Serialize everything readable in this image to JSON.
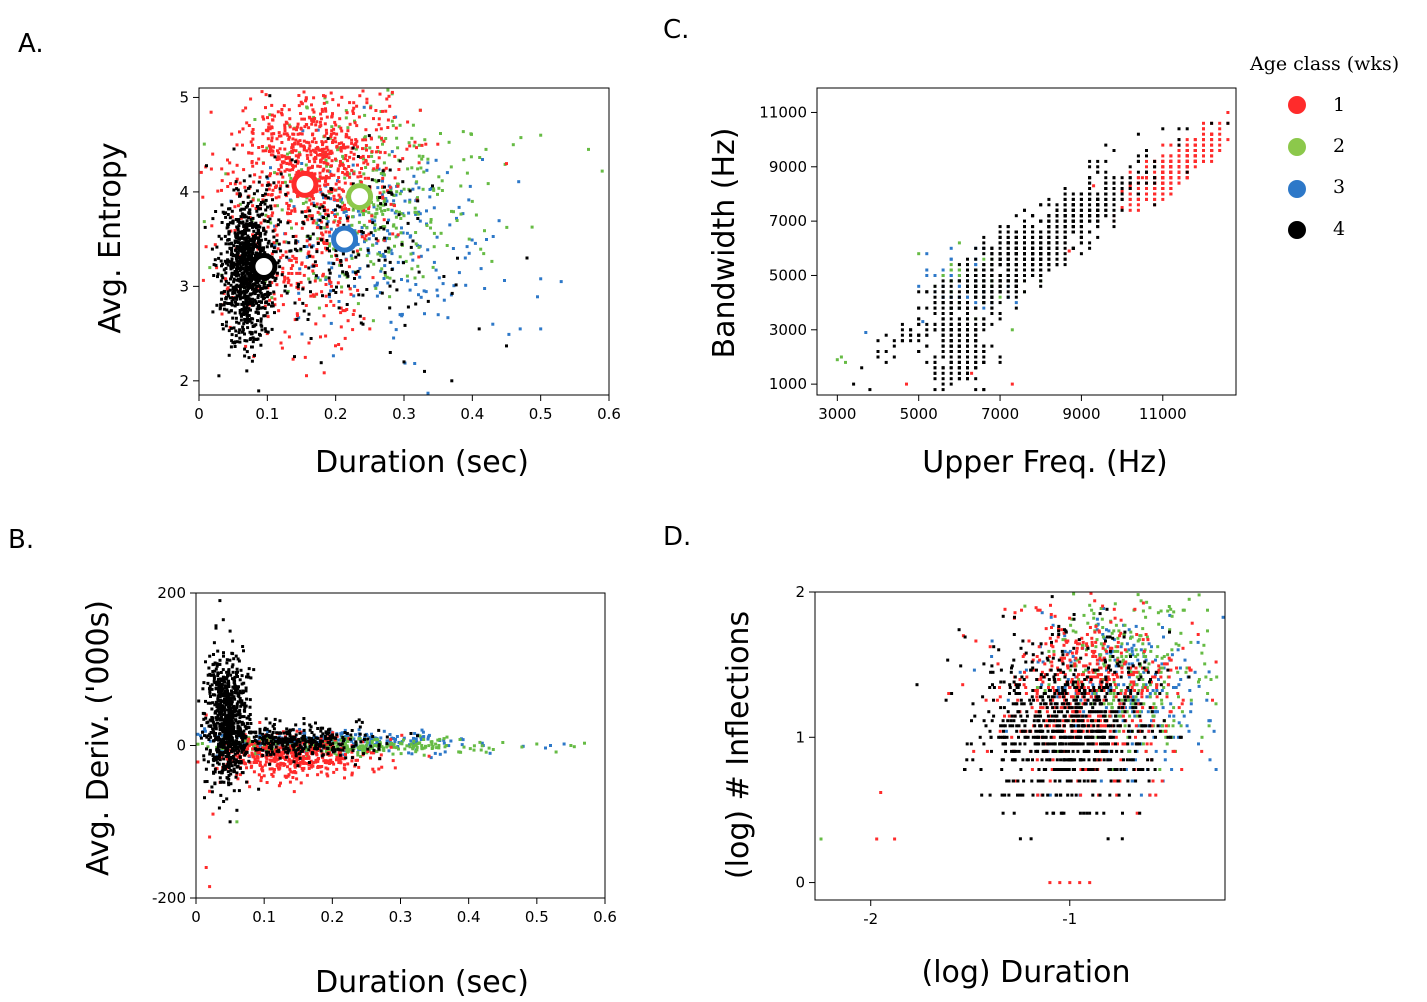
{
  "colors": {
    "1": "#ff2b2b",
    "2": "#66bb44",
    "3": "#2d78c8",
    "4": "#000000"
  },
  "legend": {
    "title": "Age class (wks)",
    "items": [
      {
        "label": "1",
        "color": "#ff2b2b"
      },
      {
        "label": "2",
        "color": "#8cc84b"
      },
      {
        "label": "3",
        "color": "#2d78c8"
      },
      {
        "label": "4",
        "color": "#000000"
      }
    ]
  },
  "chart_data": [
    {
      "id": "A",
      "panel_label": "A.",
      "type": "scatter",
      "xlabel": "Duration (sec)",
      "ylabel": "Avg. Entropy",
      "xlim": [
        0,
        0.6
      ],
      "ylim": [
        1.85,
        5.1
      ],
      "xticks": [
        0,
        0.1,
        0.2,
        0.3,
        0.4,
        0.5,
        0.6
      ],
      "xtick_labels": [
        "0",
        "0.1",
        "0.2",
        "0.3",
        "0.4",
        "0.5",
        "0.6"
      ],
      "yticks": [
        2,
        3,
        4,
        5
      ],
      "ytick_labels": [
        "2",
        "3",
        "4",
        "5"
      ],
      "means": [
        {
          "age_class": "1",
          "x": 0.155,
          "y": 4.08
        },
        {
          "age_class": "2",
          "x": 0.235,
          "y": 3.95
        },
        {
          "age_class": "3",
          "x": 0.213,
          "y": 3.5
        },
        {
          "age_class": "4",
          "x": 0.095,
          "y": 3.21
        }
      ],
      "series": [
        {
          "age_class": "4",
          "clusters": [
            {
              "cx": 0.07,
              "cy": 3.2,
              "sx": 0.018,
              "sy": 0.38,
              "n": 900
            },
            {
              "cx": 0.16,
              "cy": 3.5,
              "sx": 0.09,
              "sy": 0.45,
              "n": 280
            }
          ],
          "scatter": [
            [
              0.3,
              2.2
            ],
            [
              0.33,
              2.1
            ],
            [
              0.37,
              2.0
            ],
            [
              0.45,
              2.37
            ],
            [
              0.41,
              2.55
            ],
            [
              0.48,
              3.3
            ],
            [
              0.24,
              2.6
            ],
            [
              0.28,
              2.3
            ]
          ]
        },
        {
          "age_class": "1",
          "clusters": [
            {
              "cx": 0.17,
              "cy": 4.4,
              "sx": 0.06,
              "sy": 0.35,
              "n": 650
            },
            {
              "cx": 0.14,
              "cy": 3.3,
              "sx": 0.06,
              "sy": 0.5,
              "n": 260
            }
          ],
          "scatter": [
            [
              0.02,
              4.4
            ],
            [
              0.45,
              4.3
            ],
            [
              0.1,
              2.5
            ],
            [
              0.12,
              2.4
            ],
            [
              0.25,
              2.55
            ]
          ]
        },
        {
          "age_class": "2",
          "clusters": [
            {
              "cx": 0.25,
              "cy": 3.9,
              "sx": 0.08,
              "sy": 0.5,
              "n": 340
            }
          ],
          "scatter": [
            [
              0.5,
              4.6
            ],
            [
              0.57,
              4.45
            ],
            [
              0.59,
              4.22
            ],
            [
              0.42,
              4.45
            ],
            [
              0.46,
              4.5
            ],
            [
              0.4,
              3.9
            ]
          ]
        },
        {
          "age_class": "3",
          "clusters": [
            {
              "cx": 0.26,
              "cy": 3.5,
              "sx": 0.08,
              "sy": 0.45,
              "n": 240
            }
          ],
          "scatter": [
            [
              0.5,
              3.08
            ],
            [
              0.53,
              3.05
            ],
            [
              0.47,
              2.55
            ],
            [
              0.5,
              2.55
            ],
            [
              0.43,
              2.6
            ],
            [
              0.35,
              2.7
            ]
          ]
        }
      ]
    },
    {
      "id": "B",
      "panel_label": "B.",
      "type": "scatter",
      "xlabel": "Duration (sec)",
      "ylabel": "Avg. Deriv. ('000s)",
      "xlim": [
        0,
        0.6
      ],
      "ylim": [
        -200,
        200
      ],
      "xticks": [
        0,
        0.1,
        0.2,
        0.3,
        0.4,
        0.5,
        0.6
      ],
      "xtick_labels": [
        "0",
        "0.1",
        "0.2",
        "0.3",
        "0.4",
        "0.5",
        "0.6"
      ],
      "yticks": [
        -200,
        0,
        200
      ],
      "ytick_labels": [
        "-200",
        "0",
        "200"
      ],
      "series": [
        {
          "age_class": "4",
          "clusters": [
            {
              "cx": 0.045,
              "cy": 35,
              "sx": 0.015,
              "sy": 40,
              "n": 750
            },
            {
              "cx": 0.14,
              "cy": 5,
              "sx": 0.06,
              "sy": 12,
              "n": 380
            }
          ],
          "scatter": [
            [
              0.035,
              190
            ],
            [
              0.04,
              165
            ],
            [
              0.05,
              150
            ],
            [
              0.06,
              -85
            ],
            [
              0.05,
              -100
            ],
            [
              0.045,
              -70
            ]
          ]
        },
        {
          "age_class": "1",
          "clusters": [
            {
              "cx": 0.14,
              "cy": -15,
              "sx": 0.055,
              "sy": 14,
              "n": 450
            }
          ],
          "scatter": [
            [
              0.015,
              -160
            ],
            [
              0.02,
              -185
            ],
            [
              0.02,
              -120
            ],
            [
              0.025,
              -90
            ],
            [
              0.02,
              -60
            ],
            [
              0.015,
              40
            ],
            [
              0.03,
              -30
            ]
          ]
        },
        {
          "age_class": "2",
          "clusters": [
            {
              "cx": 0.22,
              "cy": 0,
              "sx": 0.1,
              "sy": 6,
              "n": 280
            }
          ],
          "scatter": [
            [
              0.06,
              -100
            ],
            [
              0.57,
              3
            ],
            [
              0.5,
              2
            ],
            [
              0.45,
              4
            ],
            [
              0.55,
              0
            ]
          ]
        },
        {
          "age_class": "3",
          "clusters": [
            {
              "cx": 0.2,
              "cy": 5,
              "sx": 0.1,
              "sy": 8,
              "n": 260
            }
          ],
          "scatter": [
            [
              0.52,
              0
            ],
            [
              0.54,
              2
            ],
            [
              0.48,
              -1
            ],
            [
              0.42,
              3
            ]
          ]
        }
      ]
    },
    {
      "id": "C",
      "panel_label": "C.",
      "type": "scatter",
      "xlabel": "Upper Freq. (Hz)",
      "ylabel": "Bandwidth (Hz)",
      "xlim": [
        2500,
        12800
      ],
      "ylim": [
        600,
        11900
      ],
      "xticks": [
        3000,
        5000,
        7000,
        9000,
        11000
      ],
      "xtick_labels": [
        "3000",
        "5000",
        "7000",
        "9000",
        "11000"
      ],
      "yticks": [
        1000,
        3000,
        5000,
        7000,
        9000,
        11000
      ],
      "ytick_labels": [
        "1000",
        "3000",
        "5000",
        "7000",
        "9000",
        "11000"
      ],
      "series": [
        {
          "age_class": "4",
          "clusters": [
            {
              "cx": 7800,
              "cy": 6000,
              "sx": 1400,
              "sy": 1500,
              "n": 900,
              "band": 1300,
              "quant": 200
            },
            {
              "cx": 6000,
              "cy": 2200,
              "sx": 400,
              "sy": 700,
              "n": 200,
              "quant": 200
            }
          ],
          "scatter": []
        },
        {
          "age_class": "1",
          "clusters": [
            {
              "cx": 11300,
              "cy": 9000,
              "sx": 600,
              "sy": 800,
              "n": 380,
              "band": 700,
              "quant": 200
            }
          ],
          "scatter": [
            [
              9300,
              8300
            ],
            [
              9800,
              8200
            ],
            [
              10000,
              8100
            ],
            [
              10200,
              8300
            ],
            [
              10500,
              8600
            ],
            [
              12200,
              10200
            ],
            [
              8700,
              5900
            ],
            [
              4700,
              1000
            ],
            [
              6300,
              1400
            ],
            [
              7300,
              1000
            ],
            [
              10000,
              7500
            ]
          ]
        },
        {
          "age_class": "2",
          "clusters": [
            {
              "cx": 6500,
              "cy": 4800,
              "sx": 500,
              "sy": 500,
              "n": 70,
              "quant": 200
            }
          ],
          "scatter": [
            [
              3000,
              1900
            ],
            [
              3200,
              1800
            ],
            [
              3100,
              2000
            ],
            [
              7300,
              3000
            ]
          ]
        },
        {
          "age_class": "3",
          "clusters": [
            {
              "cx": 6200,
              "cy": 4600,
              "sx": 600,
              "sy": 600,
              "n": 80,
              "quant": 200
            }
          ],
          "scatter": [
            [
              3700,
              2900
            ],
            [
              5100,
              3300
            ]
          ]
        }
      ]
    },
    {
      "id": "D",
      "panel_label": "D.",
      "type": "scatter",
      "xlabel": "(log) Duration",
      "ylabel": "(log) # Inflections",
      "xlim": [
        -2.28,
        -0.22
      ],
      "ylim": [
        -0.12,
        2.0
      ],
      "xticks": [
        -2,
        -1
      ],
      "xtick_labels": [
        "-2",
        "-1"
      ],
      "yticks": [
        0,
        1,
        2
      ],
      "ytick_labels": [
        "0",
        "1",
        "2"
      ],
      "series": [
        {
          "age_class": "4",
          "clusters": [
            {
              "cx": -1.0,
              "cy": 1.1,
              "sx": 0.22,
              "sy": 0.28,
              "n": 800,
              "levels": true
            }
          ],
          "scatter": []
        },
        {
          "age_class": "1",
          "clusters": [
            {
              "cx": -0.9,
              "cy": 1.3,
              "sx": 0.22,
              "sy": 0.28,
              "n": 520,
              "levels": true
            }
          ],
          "scatter": [
            [
              -1.97,
              0.3
            ],
            [
              -1.95,
              0.62
            ],
            [
              -1.88,
              0.3
            ],
            [
              -1.1,
              0.0
            ],
            [
              -1.05,
              0.0
            ],
            [
              -0.95,
              0.0
            ],
            [
              -0.9,
              0.0
            ],
            [
              -1.0,
              0.0
            ]
          ]
        },
        {
          "age_class": "2",
          "clusters": [
            {
              "cx": -0.7,
              "cy": 1.45,
              "sx": 0.2,
              "sy": 0.3,
              "n": 280,
              "levels": true
            }
          ],
          "scatter": [
            [
              -2.25,
              0.3
            ],
            [
              -0.35,
              1.98
            ],
            [
              -0.4,
              1.95
            ],
            [
              -0.5,
              1.9
            ]
          ]
        },
        {
          "age_class": "3",
          "clusters": [
            {
              "cx": -0.75,
              "cy": 1.3,
              "sx": 0.22,
              "sy": 0.3,
              "n": 260,
              "levels": true
            }
          ],
          "scatter": [
            [
              -0.3,
              1.45
            ],
            [
              -0.35,
              1.35
            ],
            [
              -0.45,
              1.1
            ]
          ]
        }
      ]
    }
  ]
}
